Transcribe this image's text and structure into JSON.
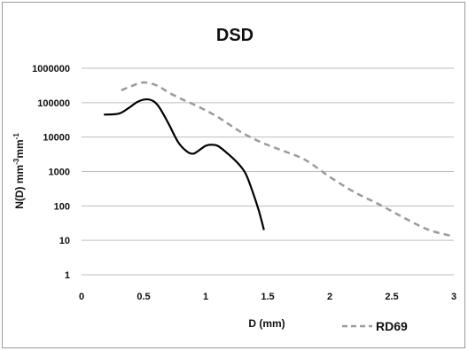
{
  "chart_data": {
    "type": "line",
    "title": "DSD",
    "xlabel": "D (mm)",
    "ylabel_main": "N(D) mm",
    "ylabel_exp1": "-3",
    "ylabel_mid": "mm",
    "ylabel_exp2": "-1",
    "xlim": [
      0,
      3
    ],
    "ylim": [
      1,
      1000000
    ],
    "yscale": "log",
    "x_ticks": [
      "0",
      "0.5",
      "1",
      "1.5",
      "2",
      "2.5",
      "3"
    ],
    "y_ticks": [
      "1",
      "10",
      "100",
      "1000",
      "10000",
      "100000",
      "1000000"
    ],
    "grid": "horizontal",
    "legend_position": "bottom-right",
    "series": [
      {
        "color": "#000000",
        "dash": "solid",
        "x": [
          0.18,
          0.3,
          0.38,
          0.45,
          0.52,
          0.58,
          0.63,
          0.7,
          0.78,
          0.85,
          0.9,
          0.95,
          1.0,
          1.05,
          1.1,
          1.17,
          1.25,
          1.32,
          1.38,
          1.43,
          1.47
        ],
        "y": [
          45000,
          48000,
          70000,
          105000,
          125000,
          110000,
          70000,
          25000,
          7000,
          3800,
          3300,
          4200,
          5600,
          6000,
          5500,
          3500,
          1900,
          900,
          250,
          70,
          20
        ]
      },
      {
        "name": "RD69",
        "color": "#9a9a9a",
        "dash": "dashed",
        "x": [
          0.32,
          0.4,
          0.48,
          0.55,
          0.62,
          0.7,
          0.8,
          0.9,
          1.0,
          1.1,
          1.2,
          1.3,
          1.45,
          1.6,
          1.8,
          2.0,
          2.2,
          2.4,
          2.6,
          2.8,
          3.0
        ],
        "y": [
          230000,
          300000,
          380000,
          370000,
          300000,
          200000,
          130000,
          90000,
          60000,
          38000,
          22000,
          13000,
          7000,
          4300,
          2200,
          700,
          250,
          110,
          45,
          20,
          13
        ]
      }
    ]
  }
}
